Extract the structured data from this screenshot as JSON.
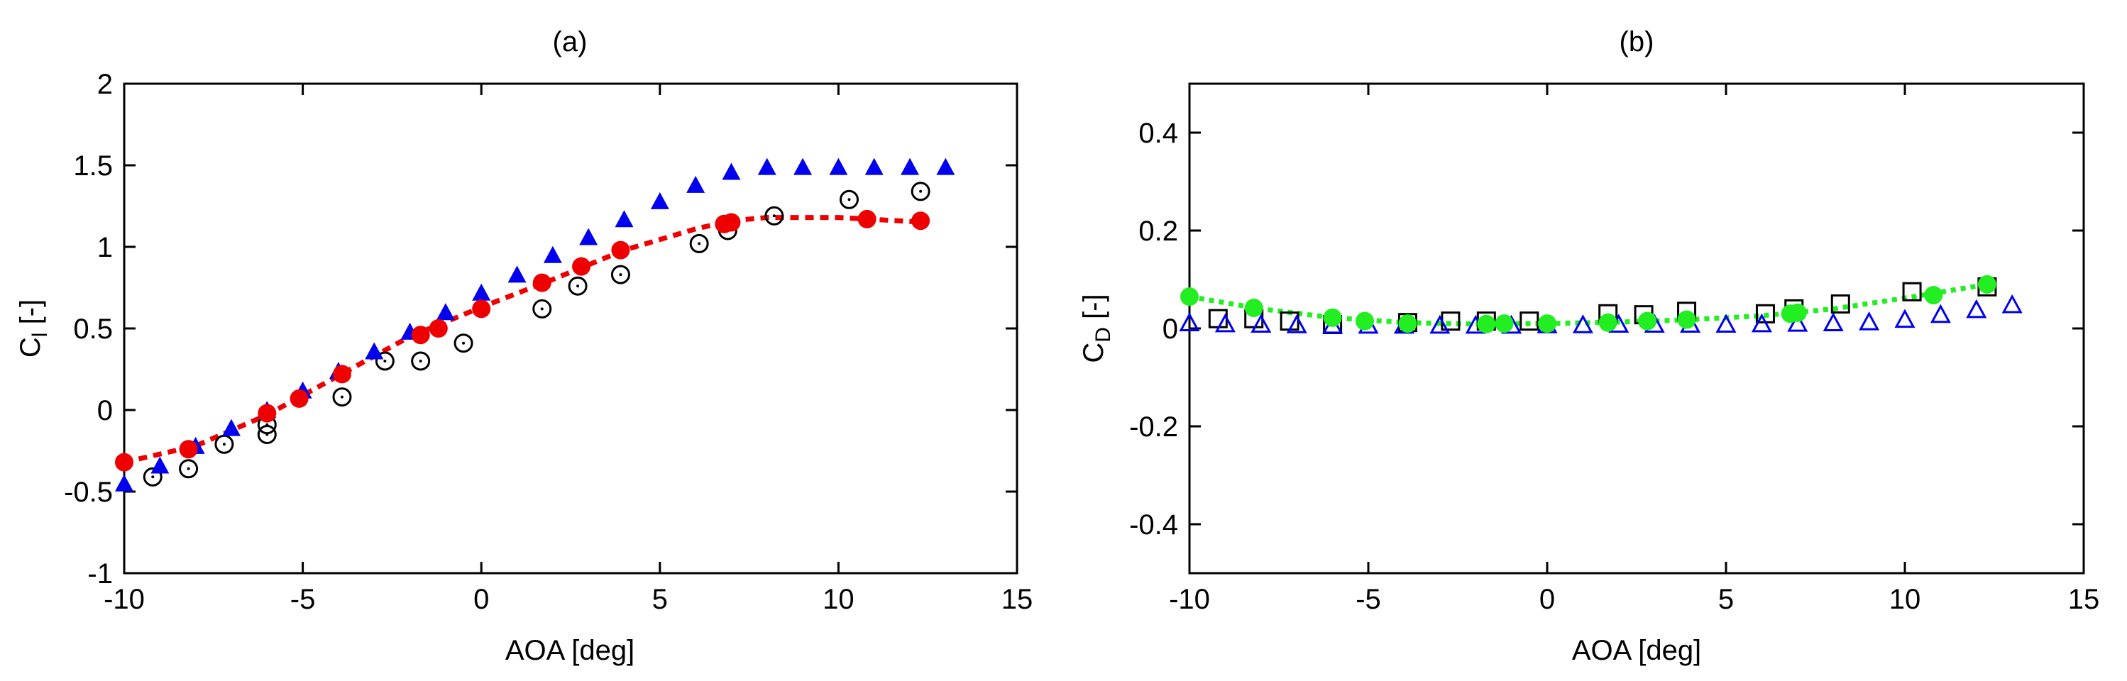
{
  "chart_data": [
    {
      "type": "scatter",
      "title": "(a)",
      "xlabel": "AOA [deg]",
      "ylabel_main": "C",
      "ylabel_sub": "l",
      "ylabel_unit": " [-]",
      "xlim": [
        -10,
        15
      ],
      "ylim": [
        -1,
        2
      ],
      "xticks": [
        -10,
        -5,
        0,
        5,
        10,
        15
      ],
      "yticks": [
        -1,
        -0.5,
        0,
        0.5,
        1,
        1.5,
        2
      ],
      "xtick_labels": [
        "-10",
        "-5",
        "0",
        "5",
        "10",
        "15"
      ],
      "ytick_labels": [
        "-1",
        "-0.5",
        "0",
        "0.5",
        "1",
        "1.5",
        "2"
      ],
      "grid": false,
      "series": [
        {
          "marker": "circle-dot-open",
          "color": "#000000",
          "x": [
            -9.2,
            -8.2,
            -7.2,
            -6.0,
            -6.0,
            -3.9,
            -2.7,
            -1.7,
            -0.5,
            1.7,
            2.7,
            3.9,
            6.1,
            6.9,
            8.2,
            10.3,
            12.3
          ],
          "y": [
            -0.41,
            -0.36,
            -0.21,
            -0.09,
            -0.15,
            0.08,
            0.3,
            0.3,
            0.41,
            0.62,
            0.76,
            0.83,
            1.02,
            1.1,
            1.19,
            1.29,
            1.34
          ]
        },
        {
          "marker": "triangle-filled",
          "color": "#0000ee",
          "x": [
            -10.0,
            -9.0,
            -8.0,
            -7.0,
            -6.0,
            -5.0,
            -4.0,
            -3.0,
            -2.0,
            -1.0,
            0.0,
            1.0,
            2.0,
            3.0,
            4.0,
            5.0,
            6.0,
            7.0,
            8.0,
            9.0,
            10.0,
            11.0,
            12.0,
            13.0
          ],
          "y": [
            -0.46,
            -0.35,
            -0.23,
            -0.12,
            -0.01,
            0.11,
            0.23,
            0.35,
            0.47,
            0.59,
            0.71,
            0.82,
            0.94,
            1.05,
            1.16,
            1.27,
            1.37,
            1.45,
            1.48,
            1.48,
            1.48,
            1.48,
            1.48,
            1.48
          ]
        },
        {
          "marker": "circle-filled",
          "color": "#ee0000",
          "x": [
            -10.0,
            -8.2,
            -6.0,
            -5.1,
            -3.9,
            -1.7,
            -1.2,
            0.0,
            1.7,
            2.8,
            3.9,
            6.8,
            7.0,
            10.8,
            12.3
          ],
          "y": [
            -0.32,
            -0.24,
            -0.02,
            0.07,
            0.22,
            0.46,
            0.5,
            0.62,
            0.78,
            0.88,
            0.98,
            1.14,
            1.15,
            1.17,
            1.16
          ]
        },
        {
          "marker": "line-dashed",
          "color": "#ee0000",
          "x": [
            -10.0,
            -8.0,
            -6.0,
            -4.0,
            -2.0,
            0.0,
            2.0,
            4.0,
            6.0,
            7.0,
            8.0,
            10.0,
            12.5
          ],
          "y": [
            -0.32,
            -0.22,
            -0.03,
            0.21,
            0.45,
            0.63,
            0.8,
            0.98,
            1.11,
            1.16,
            1.18,
            1.18,
            1.15
          ]
        }
      ]
    },
    {
      "type": "scatter",
      "title": "(b)",
      "xlabel": "AOA [deg]",
      "ylabel_main": "C",
      "ylabel_sub": "D",
      "ylabel_unit": " [-]",
      "xlim": [
        -10,
        15
      ],
      "ylim": [
        -0.5,
        0.5
      ],
      "xticks": [
        -10,
        -5,
        0,
        5,
        10,
        15
      ],
      "yticks": [
        -0.4,
        -0.2,
        0,
        0.2,
        0.4
      ],
      "xtick_labels": [
        "-10",
        "-5",
        "0",
        "5",
        "10",
        "15"
      ],
      "ytick_labels": [
        "-0.4",
        "-0.2",
        "0",
        "0.2",
        "0.4"
      ],
      "grid": false,
      "series": [
        {
          "marker": "square-open",
          "color": "#000000",
          "x": [
            -9.2,
            -8.2,
            -7.2,
            -6.0,
            -3.9,
            -2.7,
            -1.7,
            -0.5,
            1.7,
            2.7,
            3.9,
            6.1,
            6.9,
            8.2,
            10.2,
            12.3
          ],
          "y": [
            0.02,
            0.02,
            0.015,
            0.008,
            0.012,
            0.015,
            0.015,
            0.015,
            0.03,
            0.028,
            0.035,
            0.03,
            0.04,
            0.05,
            0.075,
            0.085
          ]
        },
        {
          "marker": "triangle-open",
          "color": "#0000ee",
          "x": [
            -10.0,
            -9.0,
            -8.0,
            -7.0,
            -6.0,
            -5.0,
            -4.0,
            -3.0,
            -2.0,
            -1.0,
            0.0,
            1.0,
            2.0,
            3.0,
            4.0,
            5.0,
            6.0,
            7.0,
            8.0,
            9.0,
            10.0,
            11.0,
            12.0,
            13.0
          ],
          "y": [
            0.008,
            0.006,
            0.005,
            0.004,
            0.003,
            0.003,
            0.003,
            0.003,
            0.003,
            0.003,
            0.004,
            0.004,
            0.005,
            0.005,
            0.005,
            0.005,
            0.006,
            0.007,
            0.008,
            0.01,
            0.015,
            0.025,
            0.035,
            0.045
          ]
        },
        {
          "marker": "circle-filled",
          "color": "#22ee22",
          "x": [
            -10.0,
            -8.2,
            -6.0,
            -5.1,
            -3.9,
            -1.7,
            -1.2,
            0.0,
            1.7,
            2.8,
            3.9,
            6.8,
            7.0,
            10.8,
            12.3
          ],
          "y": [
            0.065,
            0.042,
            0.022,
            0.015,
            0.01,
            0.009,
            0.01,
            0.01,
            0.012,
            0.015,
            0.018,
            0.03,
            0.032,
            0.068,
            0.09
          ]
        },
        {
          "marker": "line-dotted",
          "color": "#22ee22",
          "x": [
            -10.0,
            -8.0,
            -6.0,
            -4.0,
            -2.0,
            0.0,
            2.0,
            4.0,
            6.0,
            8.0,
            10.0,
            12.3
          ],
          "y": [
            0.065,
            0.04,
            0.022,
            0.012,
            0.009,
            0.01,
            0.013,
            0.018,
            0.026,
            0.04,
            0.062,
            0.09
          ]
        }
      ]
    }
  ]
}
